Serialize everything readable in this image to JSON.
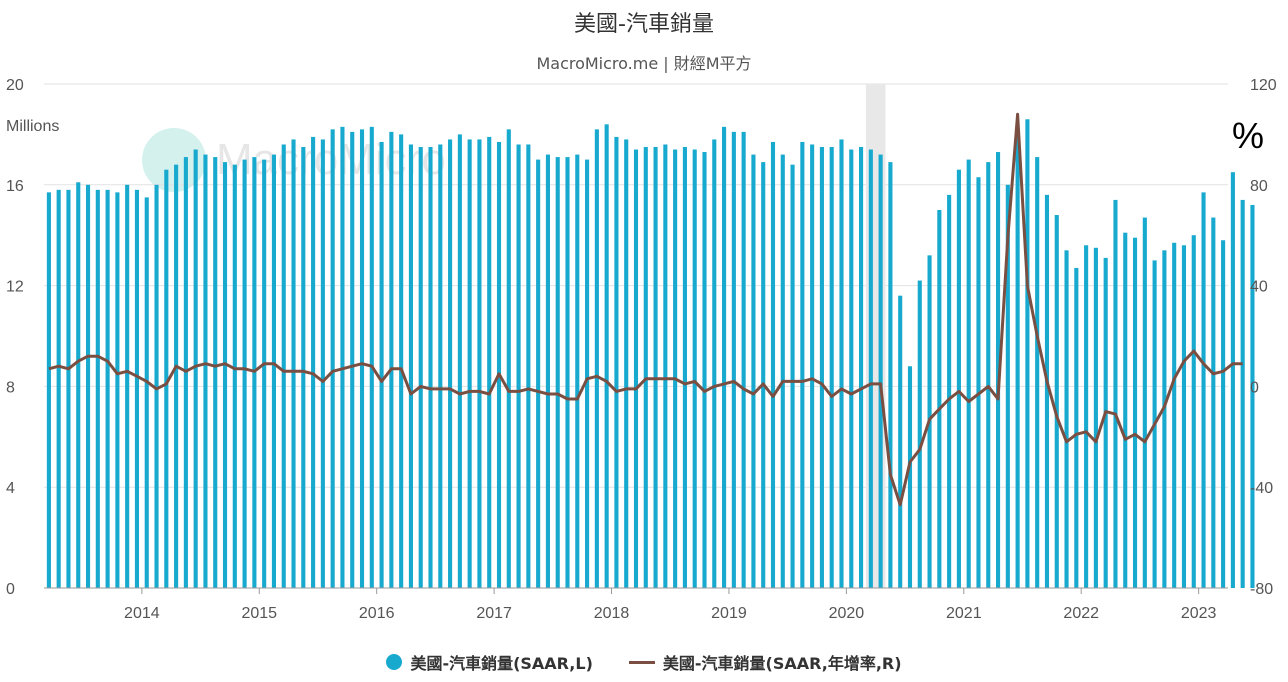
{
  "title": "美國-汽車銷量",
  "subtitle": "MacroMicro.me | 財經M平方",
  "watermark": "MacroMicro",
  "legend": {
    "bar_label": "美國-汽車銷量(SAAR,L)",
    "line_label": "美國-汽車銷量(SAAR,年增率,R)"
  },
  "colors": {
    "bar": "#18a9cf",
    "line": "#7a4f42",
    "recession": "#e8e8e8",
    "grid": "#e2e2e2"
  },
  "chart_data": {
    "type": "bar",
    "title": "美國-汽車銷量",
    "subtitle": "MacroMicro.me | 財經M平方",
    "x_range": [
      "2013-03",
      "2023-03"
    ],
    "x_ticks": [
      "2014",
      "2015",
      "2016",
      "2017",
      "2018",
      "2019",
      "2020",
      "2021",
      "2022",
      "2023"
    ],
    "left_axis": {
      "label": "Millions",
      "ticks": [
        0,
        4,
        8,
        12,
        16,
        20
      ],
      "ylim": [
        0,
        20
      ]
    },
    "right_axis": {
      "label": "%",
      "ticks": [
        -80,
        -40,
        0,
        40,
        80,
        120
      ],
      "ylim": [
        -80,
        120
      ]
    },
    "shaded_region": [
      "2020-03",
      "2020-04"
    ],
    "grid": true,
    "legend_position": "bottom",
    "series": [
      {
        "name": "美國-汽車銷量(SAAR,L)",
        "type": "bar",
        "axis": "left",
        "start": "2013-03",
        "frequency": "monthly",
        "values": [
          15.7,
          15.8,
          15.8,
          16.1,
          16.0,
          15.8,
          15.8,
          15.7,
          16.0,
          15.8,
          15.5,
          16.0,
          16.6,
          16.8,
          17.1,
          17.4,
          17.2,
          17.1,
          16.9,
          16.8,
          17.0,
          17.1,
          17.0,
          17.2,
          17.6,
          17.8,
          17.5,
          17.9,
          17.8,
          18.2,
          18.3,
          18.1,
          18.2,
          18.3,
          17.7,
          18.1,
          18.0,
          17.6,
          17.5,
          17.5,
          17.6,
          17.8,
          18.0,
          17.8,
          17.8,
          17.9,
          17.7,
          18.2,
          17.6,
          17.6,
          17.0,
          17.2,
          17.1,
          17.1,
          17.2,
          17.0,
          18.2,
          18.4,
          17.9,
          17.8,
          17.4,
          17.5,
          17.5,
          17.6,
          17.4,
          17.5,
          17.4,
          17.3,
          17.8,
          18.3,
          18.1,
          18.1,
          17.2,
          16.9,
          17.7,
          17.2,
          16.8,
          17.7,
          17.6,
          17.5,
          17.5,
          17.8,
          17.4,
          17.5,
          17.4,
          17.2,
          16.9,
          11.6,
          8.8,
          12.2,
          13.2,
          15.0,
          15.6,
          16.6,
          17.0,
          16.3,
          16.9,
          17.3,
          16.0,
          18.2,
          18.6,
          17.1,
          15.6,
          14.8,
          13.4,
          12.7,
          13.6,
          13.5,
          13.1,
          15.4,
          14.1,
          13.9,
          14.7,
          13.0,
          13.4,
          13.7,
          13.6,
          14.0,
          15.7,
          14.7,
          13.8,
          16.5,
          15.4,
          15.2
        ]
      },
      {
        "name": "美國-汽車銷量(SAAR,年增率,R)",
        "type": "line",
        "axis": "right",
        "start": "2013-03",
        "frequency": "monthly",
        "values": [
          7,
          8,
          7,
          10,
          12,
          12,
          10,
          5,
          6,
          4,
          2,
          -1,
          1,
          8,
          6,
          8,
          9,
          8,
          9,
          7,
          7,
          6,
          9,
          9,
          6,
          6,
          6,
          5,
          2,
          6,
          7,
          8,
          9,
          8,
          2,
          7,
          7,
          -3,
          0,
          -1,
          -1,
          -1,
          -3,
          -2,
          -2,
          -3,
          5,
          -2,
          -2,
          -1,
          -2,
          -3,
          -3,
          -5,
          -5,
          3,
          4,
          2,
          -2,
          -1,
          -1,
          3,
          3,
          3,
          3,
          1,
          2,
          -2,
          0,
          1,
          2,
          -1,
          -3,
          1,
          -4,
          2,
          2,
          2,
          3,
          1,
          -4,
          -1,
          -3,
          -1,
          1,
          1,
          -35,
          -47,
          -30,
          -25,
          -13,
          -9,
          -5,
          -2,
          -6,
          -3,
          0,
          -5,
          59,
          108,
          40,
          20,
          2,
          -12,
          -22,
          -19,
          -18,
          -22,
          -10,
          -11,
          -21,
          -19,
          -22,
          -15,
          -8,
          3,
          10,
          14,
          9,
          5,
          6,
          9,
          9
        ]
      }
    ]
  }
}
